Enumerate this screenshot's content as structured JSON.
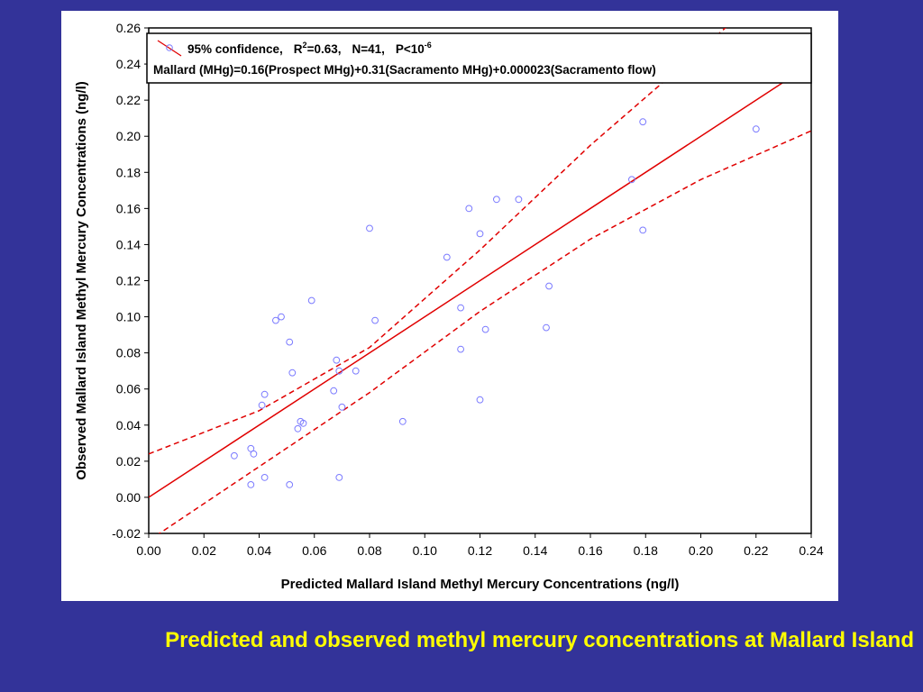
{
  "caption": "Predicted and observed methyl mercury concentrations at Mallard Island",
  "colors": {
    "background": "#333399",
    "caption": "#ffff00",
    "fit_line": "#e00000",
    "points": "#7b7bff"
  },
  "chart_data": {
    "type": "scatter",
    "xlabel": "Predicted Mallard Island Methyl Mercury Concentrations (ng/l)",
    "ylabel": "Observed Mallard Island Methyl Mercury Concentrations (ng/l)",
    "xlim": [
      0.0,
      0.24
    ],
    "ylim": [
      -0.02,
      0.26
    ],
    "xticks": [
      "0.00",
      "0.02",
      "0.04",
      "0.06",
      "0.08",
      "0.10",
      "0.12",
      "0.14",
      "0.16",
      "0.18",
      "0.20",
      "0.22",
      "0.24"
    ],
    "yticks": [
      "-0.02",
      "0.00",
      "0.02",
      "0.04",
      "0.06",
      "0.08",
      "0.10",
      "0.12",
      "0.14",
      "0.16",
      "0.18",
      "0.20",
      "0.22",
      "0.24",
      "0.26"
    ],
    "grid": false,
    "legend_position": "top",
    "legend": {
      "line1_prefix": "95% confidence,",
      "r2_label": "R",
      "r2_sup": "2",
      "r2_value": "=0.63,",
      "n_text": "N=41,",
      "p_label": "P<10",
      "p_sup": "-6",
      "equation": "Mallard (MHg)=0.16(Prospect MHg)+0.31(Sacramento MHg)+0.000023(Sacramento flow)"
    },
    "fit_line": {
      "slope": 1.0,
      "intercept": 0.0
    },
    "confidence_band": {
      "upper": [
        [
          0.0,
          0.024
        ],
        [
          0.04,
          0.048
        ],
        [
          0.08,
          0.083
        ],
        [
          0.12,
          0.137
        ],
        [
          0.16,
          0.195
        ],
        [
          0.2,
          0.248
        ],
        [
          0.24,
          0.302
        ]
      ],
      "lower": [
        [
          0.0,
          -0.024
        ],
        [
          0.04,
          0.017
        ],
        [
          0.08,
          0.058
        ],
        [
          0.12,
          0.103
        ],
        [
          0.16,
          0.143
        ],
        [
          0.2,
          0.176
        ],
        [
          0.24,
          0.203
        ]
      ]
    },
    "points": [
      [
        0.031,
        0.023
      ],
      [
        0.037,
        0.027
      ],
      [
        0.038,
        0.024
      ],
      [
        0.037,
        0.007
      ],
      [
        0.041,
        0.051
      ],
      [
        0.042,
        0.057
      ],
      [
        0.042,
        0.011
      ],
      [
        0.046,
        0.098
      ],
      [
        0.048,
        0.1
      ],
      [
        0.051,
        0.086
      ],
      [
        0.052,
        0.069
      ],
      [
        0.051,
        0.007
      ],
      [
        0.054,
        0.038
      ],
      [
        0.055,
        0.042
      ],
      [
        0.056,
        0.041
      ],
      [
        0.059,
        0.109
      ],
      [
        0.067,
        0.059
      ],
      [
        0.068,
        0.076
      ],
      [
        0.069,
        0.07
      ],
      [
        0.07,
        0.05
      ],
      [
        0.069,
        0.011
      ],
      [
        0.075,
        0.07
      ],
      [
        0.08,
        0.149
      ],
      [
        0.082,
        0.098
      ],
      [
        0.092,
        0.042
      ],
      [
        0.108,
        0.133
      ],
      [
        0.113,
        0.105
      ],
      [
        0.113,
        0.082
      ],
      [
        0.116,
        0.16
      ],
      [
        0.12,
        0.146
      ],
      [
        0.12,
        0.054
      ],
      [
        0.122,
        0.093
      ],
      [
        0.126,
        0.165
      ],
      [
        0.134,
        0.165
      ],
      [
        0.144,
        0.094
      ],
      [
        0.145,
        0.117
      ],
      [
        0.175,
        0.176
      ],
      [
        0.179,
        0.208
      ],
      [
        0.179,
        0.148
      ],
      [
        0.22,
        0.204
      ],
      [
        0.007,
        0.249
      ]
    ]
  }
}
